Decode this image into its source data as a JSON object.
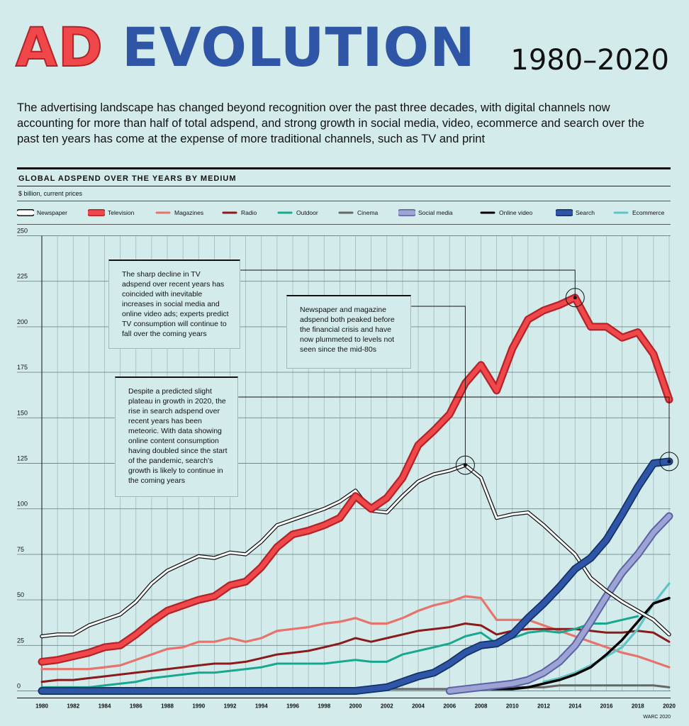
{
  "header": {
    "title_part1": "AD",
    "title_part2": "EVOLUTION",
    "years": "1980–2020",
    "intro": "The advertising landscape has changed beyond recognition over the past three decades, with digital channels now accounting for more than half of total adspend, and strong growth in social media, video, ecommerce and search over the past ten years has come at the expense of more traditional channels, such as TV and print"
  },
  "colors": {
    "background": "#d4ebec",
    "newspaper": "#ffffff",
    "television": "#f0474a",
    "magazines": "#e8736a",
    "radio": "#8b1a1a",
    "outdoor": "#17a88f",
    "cinema": "#666666",
    "social_media": "#9da3d3",
    "online_video": "#000000",
    "search": "#2f56a6",
    "ecommerce": "#5fc4c6"
  },
  "chart_data": {
    "type": "line",
    "title": "GLOBAL ADSPEND OVER THE YEARS BY MEDIUM",
    "subtitle": "$ billion, current prices",
    "xlabel": "",
    "ylabel": "",
    "ylim": [
      0,
      250
    ],
    "yticks": [
      0,
      25,
      50,
      75,
      100,
      125,
      150,
      175,
      200,
      225,
      250
    ],
    "xticks": [
      "1980",
      "1982",
      "1984",
      "1986",
      "1988",
      "1990",
      "1992",
      "1994",
      "1996",
      "1998",
      "2000",
      "2002",
      "2004",
      "2006",
      "2008",
      "2010",
      "2012",
      "2014",
      "2016",
      "2018",
      "2020"
    ],
    "x": [
      1980,
      1981,
      1982,
      1983,
      1984,
      1985,
      1986,
      1987,
      1988,
      1989,
      1990,
      1991,
      1992,
      1993,
      1994,
      1995,
      1996,
      1997,
      1998,
      1999,
      2000,
      2001,
      2002,
      2003,
      2004,
      2005,
      2006,
      2007,
      2008,
      2009,
      2010,
      2011,
      2012,
      2013,
      2014,
      2015,
      2016,
      2017,
      2018,
      2019,
      2020
    ],
    "series": [
      {
        "name": "Newspaper",
        "key": "newspaper",
        "values": [
          30,
          31,
          31,
          36,
          39,
          42,
          49,
          59,
          66,
          70,
          74,
          73,
          76,
          75,
          82,
          91,
          94,
          97,
          100,
          104,
          110,
          99,
          98,
          107,
          115,
          119,
          121,
          124,
          117,
          95,
          97,
          98,
          91,
          83,
          75,
          62,
          55,
          49,
          44,
          39,
          31
        ]
      },
      {
        "name": "Television",
        "key": "television",
        "values": [
          16,
          17,
          19,
          21,
          24,
          25,
          31,
          38,
          44,
          47,
          50,
          52,
          58,
          60,
          68,
          79,
          86,
          88,
          91,
          95,
          107,
          100,
          106,
          117,
          135,
          143,
          152,
          169,
          179,
          165,
          188,
          204,
          209,
          212,
          216,
          200,
          200,
          194,
          197,
          185,
          160
        ]
      },
      {
        "name": "Magazines",
        "key": "magazines",
        "values": [
          12,
          12,
          12,
          12,
          13,
          14,
          17,
          20,
          23,
          24,
          27,
          27,
          29,
          27,
          29,
          33,
          34,
          35,
          37,
          38,
          40,
          37,
          37,
          40,
          44,
          47,
          49,
          52,
          51,
          39,
          39,
          39,
          36,
          33,
          30,
          27,
          24,
          21,
          19,
          16,
          13
        ]
      },
      {
        "name": "Radio",
        "key": "radio",
        "values": [
          5,
          6,
          6,
          7,
          8,
          9,
          10,
          11,
          12,
          13,
          14,
          15,
          15,
          16,
          18,
          20,
          21,
          22,
          24,
          26,
          29,
          27,
          29,
          31,
          33,
          34,
          35,
          37,
          36,
          31,
          33,
          34,
          34,
          34,
          34,
          33,
          32,
          32,
          33,
          32,
          27
        ]
      },
      {
        "name": "Outdoor",
        "key": "outdoor",
        "values": [
          2,
          2,
          2,
          2,
          3,
          4,
          5,
          7,
          8,
          9,
          10,
          10,
          11,
          12,
          13,
          15,
          15,
          15,
          15,
          16,
          17,
          16,
          16,
          20,
          22,
          24,
          26,
          30,
          32,
          26,
          29,
          32,
          33,
          32,
          34,
          37,
          37,
          39,
          41,
          null,
          null
        ]
      },
      {
        "name": "Cinema",
        "key": "cinema",
        "values": [
          0,
          0,
          0,
          0,
          0,
          0,
          0,
          0,
          0,
          0,
          0,
          0,
          0,
          0,
          0,
          0,
          0,
          0,
          0,
          0,
          0,
          1,
          1,
          1,
          1,
          1,
          1,
          2,
          2,
          2,
          2,
          2,
          2,
          3,
          3,
          3,
          3,
          3,
          3,
          3,
          2
        ]
      },
      {
        "name": "Social media",
        "key": "social_media",
        "values": [
          null,
          null,
          null,
          null,
          null,
          null,
          null,
          null,
          null,
          null,
          null,
          null,
          null,
          null,
          null,
          null,
          null,
          null,
          null,
          null,
          null,
          null,
          null,
          null,
          null,
          null,
          0,
          1,
          2,
          3,
          4,
          6,
          10,
          16,
          25,
          38,
          52,
          65,
          75,
          87,
          96
        ]
      },
      {
        "name": "Online video",
        "key": "online_video",
        "values": [
          null,
          null,
          null,
          null,
          null,
          null,
          null,
          null,
          null,
          null,
          null,
          null,
          null,
          null,
          null,
          null,
          null,
          null,
          null,
          null,
          null,
          null,
          null,
          null,
          null,
          null,
          0,
          0,
          1,
          1,
          1,
          2,
          4,
          6,
          9,
          13,
          20,
          28,
          38,
          48,
          51
        ]
      },
      {
        "name": "Search",
        "key": "search",
        "values": [
          0,
          0,
          0,
          0,
          0,
          0,
          0,
          0,
          0,
          0,
          0,
          0,
          0,
          0,
          0,
          0,
          0,
          0,
          0,
          0,
          0,
          1,
          2,
          5,
          8,
          10,
          15,
          21,
          25,
          26,
          31,
          40,
          48,
          57,
          67,
          73,
          83,
          97,
          112,
          125,
          126
        ]
      },
      {
        "name": "Ecommerce",
        "key": "ecommerce",
        "values": [
          null,
          null,
          null,
          null,
          null,
          null,
          null,
          null,
          null,
          null,
          null,
          null,
          null,
          null,
          null,
          null,
          null,
          null,
          null,
          null,
          null,
          null,
          null,
          null,
          null,
          null,
          null,
          null,
          null,
          null,
          null,
          null,
          5,
          7,
          10,
          14,
          19,
          24,
          34,
          48,
          59
        ]
      }
    ],
    "annotations": [
      {
        "year": 2014,
        "value": 216,
        "text": "The sharp decline in TV adspend over recent years has coincided with inevitable increases in social media and online video ads; experts predict TV consumption will continue to fall over the coming years"
      },
      {
        "year": 2007,
        "value": 124,
        "text": "Newspaper and magazine adspend both peaked before the financial crisis and have now plummeted to levels not seen since the mid-80s"
      },
      {
        "year": 2020,
        "value": 126,
        "text": "Despite a predicted slight plateau in growth in 2020, the rise in search adspend over recent years has been meteoric. With data showing online content consumption having doubled since the start of the pandemic, search's growth is likely to continue in the coming years"
      }
    ]
  },
  "credit": "WARC 2020"
}
